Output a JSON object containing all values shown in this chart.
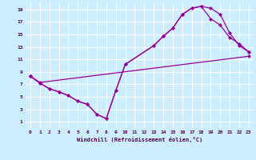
{
  "bg_color": "#cceeff",
  "grid_color": "#ffffff",
  "line_color": "#990099",
  "xlim": [
    -0.5,
    23.5
  ],
  "ylim": [
    0,
    20
  ],
  "xticks": [
    0,
    1,
    2,
    3,
    4,
    5,
    6,
    7,
    8,
    9,
    10,
    11,
    12,
    13,
    14,
    15,
    16,
    17,
    18,
    19,
    20,
    21,
    22,
    23
  ],
  "yticks": [
    1,
    3,
    5,
    7,
    9,
    11,
    13,
    15,
    17,
    19
  ],
  "xlabel": "Windchill (Refroidissement éolien,°C)",
  "line1_x": [
    0,
    1,
    2,
    3,
    4,
    5,
    6,
    7,
    8,
    9,
    10,
    13,
    14,
    15,
    16,
    17,
    18,
    19,
    20,
    21,
    22,
    23
  ],
  "line1_y": [
    8.3,
    7.2,
    6.3,
    5.8,
    5.2,
    4.3,
    3.8,
    2.2,
    1.5,
    6.0,
    10.2,
    13.2,
    14.7,
    16.0,
    18.2,
    19.2,
    19.5,
    19.2,
    18.2,
    15.2,
    13.2,
    12.2
  ],
  "line2_x": [
    0,
    1,
    2,
    3,
    4,
    5,
    6,
    7,
    8,
    9,
    10,
    13,
    14,
    15,
    16,
    17,
    18,
    19,
    20,
    21,
    22,
    23
  ],
  "line2_y": [
    8.3,
    7.2,
    6.3,
    5.8,
    5.2,
    4.3,
    3.8,
    2.2,
    1.5,
    6.0,
    10.2,
    13.2,
    14.7,
    16.0,
    18.2,
    19.2,
    19.5,
    17.5,
    16.5,
    14.5,
    13.5,
    12.2
  ],
  "line3_x": [
    0,
    1,
    23
  ],
  "line3_y": [
    8.3,
    7.3,
    11.5
  ]
}
